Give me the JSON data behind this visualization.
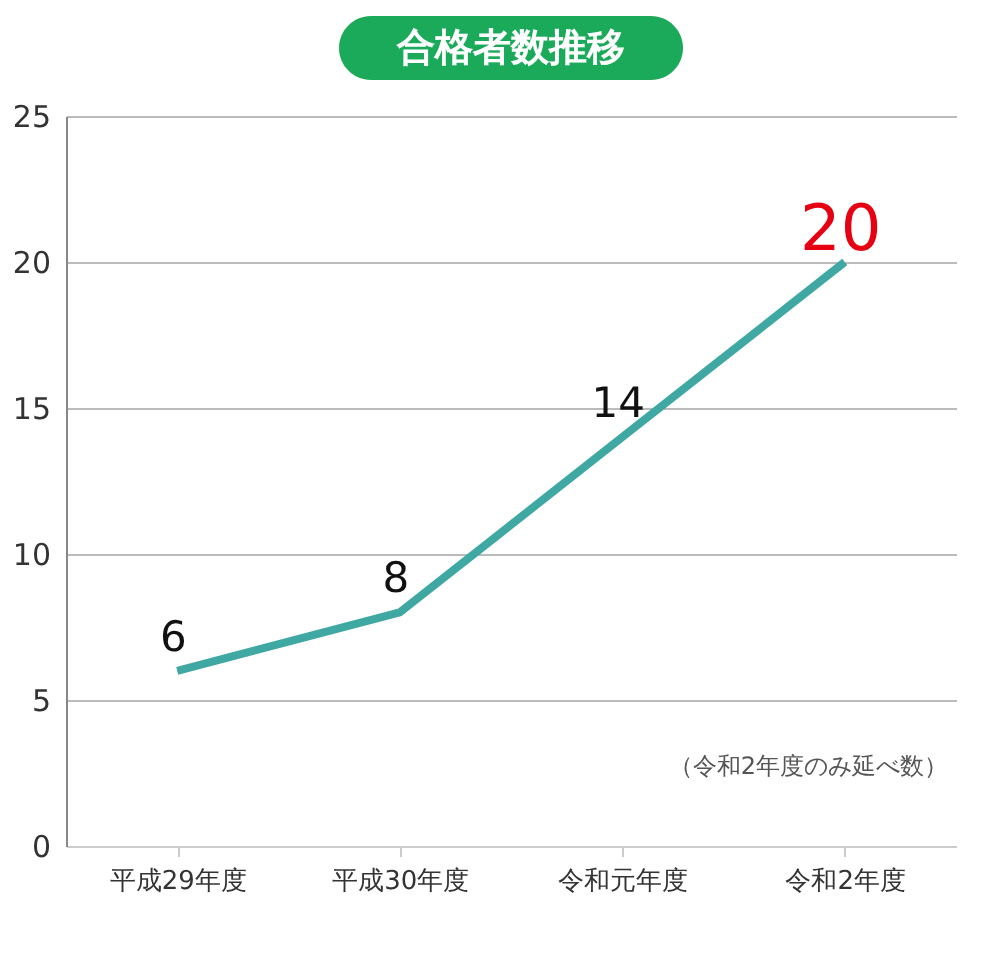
{
  "chart_data": {
    "type": "line",
    "title": "合格者数推移",
    "categories": [
      "平成29年度",
      "平成30年度",
      "令和元年度",
      "令和2年度"
    ],
    "series": [
      {
        "color": "#3fa8a3",
        "values": [
          6,
          8,
          14,
          20
        ]
      }
    ],
    "ylim": [
      0,
      25
    ],
    "yticks": [
      0,
      5,
      10,
      15,
      20,
      25
    ],
    "grid": "y",
    "data_labels": true,
    "marker": "none",
    "line_style": "solid",
    "annotations": [
      "（令和2年度のみ延べ数）"
    ]
  }
}
